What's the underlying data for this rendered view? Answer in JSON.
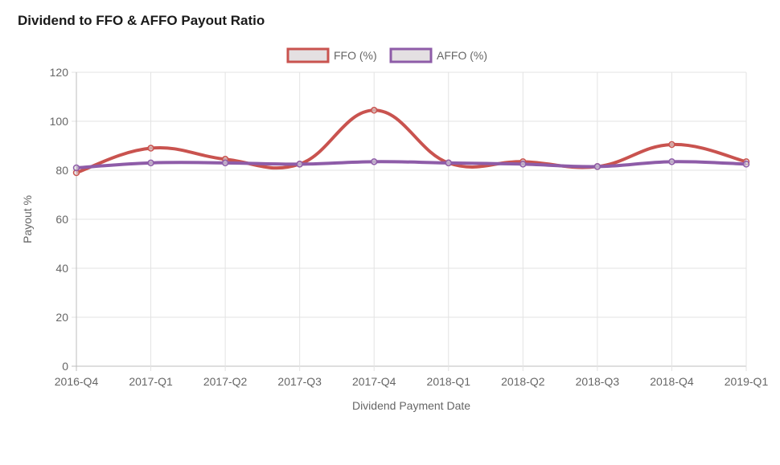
{
  "title": "Dividend to FFO & AFFO Payout Ratio",
  "colors": {
    "ffo": "#c9534f",
    "affo": "#8e5ca8",
    "grid": "#e3e3e3",
    "text": "#666666"
  },
  "chart_data": {
    "type": "line",
    "title": "",
    "xlabel": "Dividend Payment Date",
    "ylabel": "Payout %",
    "categories": [
      "2016-Q4",
      "2017-Q1",
      "2017-Q2",
      "2017-Q3",
      "2017-Q4",
      "2018-Q1",
      "2018-Q2",
      "2018-Q3",
      "2018-Q4",
      "2019-Q1"
    ],
    "ylim": [
      0,
      120
    ],
    "yticks": [
      0,
      20,
      40,
      60,
      80,
      100,
      120
    ],
    "grid": true,
    "legend_position": "top",
    "series": [
      {
        "name": "FFO (%)",
        "color": "#c9534f",
        "values": [
          79,
          89,
          84.5,
          82.5,
          104.5,
          83,
          83.5,
          81.5,
          90.5,
          83.5
        ]
      },
      {
        "name": "AFFO (%)",
        "color": "#8e5ca8",
        "values": [
          81,
          83,
          83,
          82.5,
          83.5,
          83,
          82.5,
          81.5,
          83.5,
          82.5
        ]
      }
    ]
  }
}
